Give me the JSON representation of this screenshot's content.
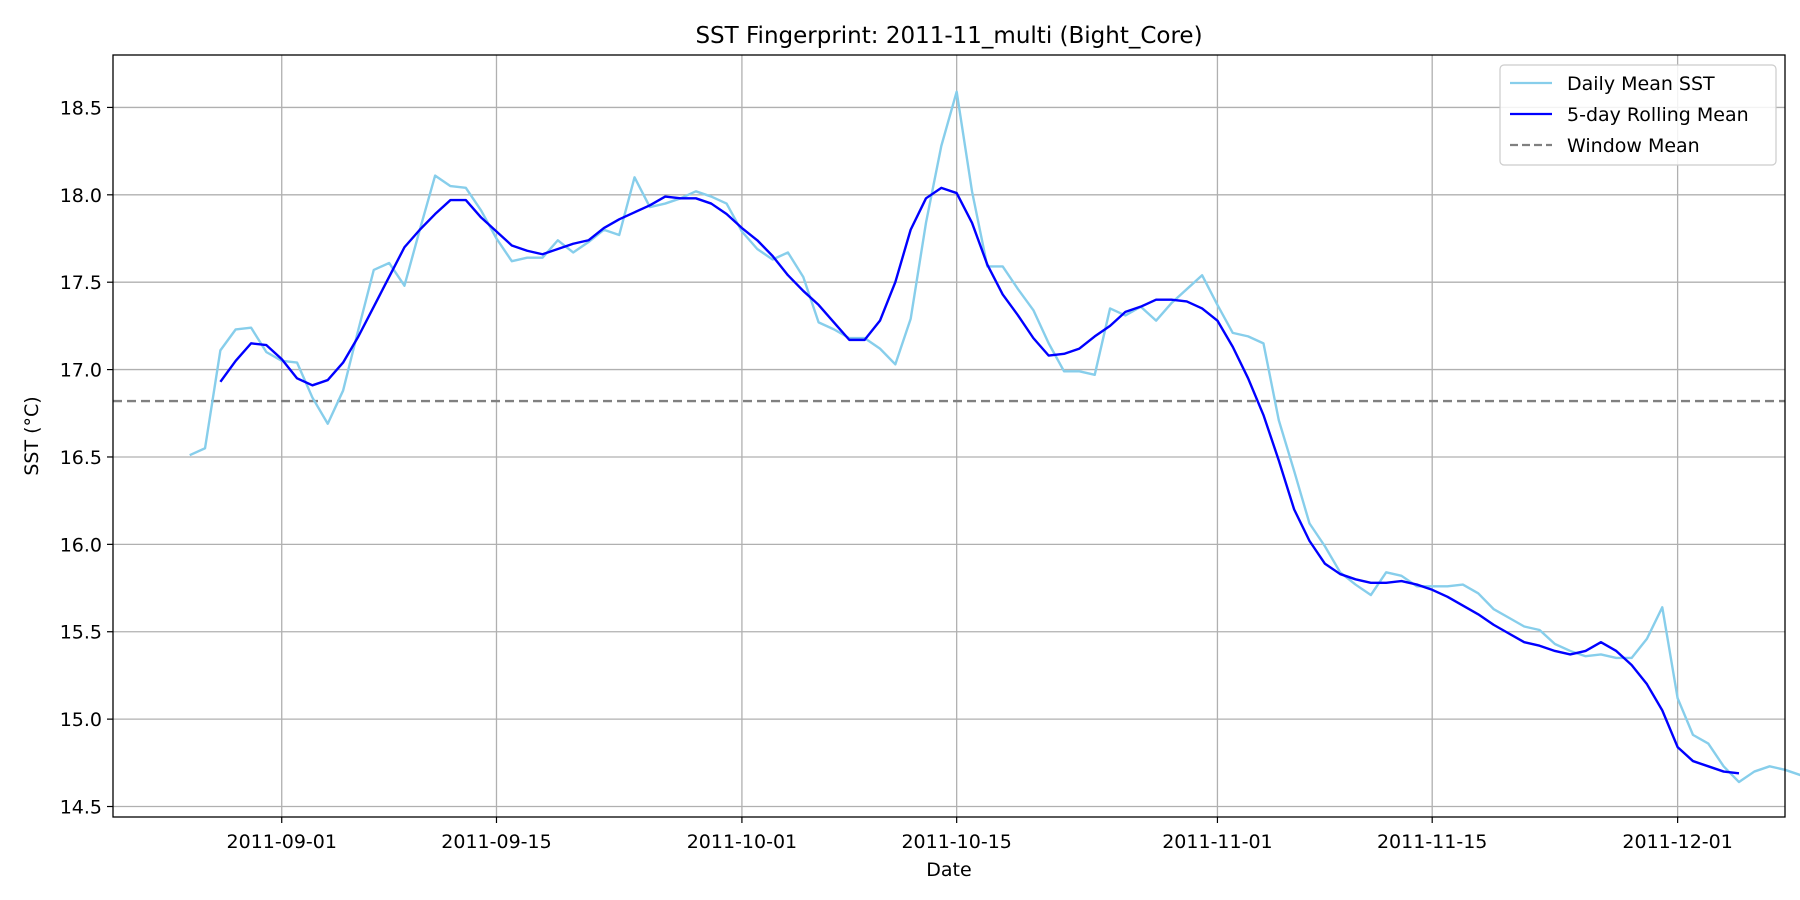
{
  "chart_data": {
    "type": "line",
    "title": "SST Fingerprint: 2011-11_multi (Bight_Core)",
    "xlabel": "Date",
    "ylabel": "SST (°C)",
    "xlim": [
      "2011-08-21",
      "2011-12-08"
    ],
    "ylim": [
      14.44,
      18.8
    ],
    "x_ticks": [
      "2011-09-01",
      "2011-09-15",
      "2011-10-01",
      "2011-10-15",
      "2011-11-01",
      "2011-11-15",
      "2011-12-01"
    ],
    "y_ticks": [
      14.5,
      15.0,
      15.5,
      16.0,
      16.5,
      17.0,
      17.5,
      18.0,
      18.5
    ],
    "grid": true,
    "legend_position": "top-right",
    "colors": {
      "daily": "#87ceeb",
      "rolling": "#0000ff",
      "window_mean": "#808080",
      "grid": "#b0b0b0"
    },
    "window_mean": 16.82,
    "series": [
      {
        "name": "Daily Mean SST",
        "style": "solid",
        "start_date": "2011-08-26",
        "values": [
          16.51,
          16.55,
          17.11,
          17.23,
          17.24,
          17.1,
          17.05,
          17.04,
          16.84,
          16.69,
          16.88,
          17.23,
          17.57,
          17.61,
          17.48,
          17.8,
          18.11,
          18.05,
          18.04,
          17.91,
          17.75,
          17.62,
          17.64,
          17.64,
          17.74,
          17.67,
          17.73,
          17.8,
          17.77,
          18.1,
          17.93,
          17.95,
          17.98,
          18.02,
          17.99,
          17.95,
          17.79,
          17.69,
          17.63,
          17.67,
          17.53,
          17.27,
          17.23,
          17.18,
          17.18,
          17.12,
          17.03,
          17.29,
          17.84,
          18.28,
          18.59,
          18.02,
          17.59,
          17.59,
          17.46,
          17.34,
          17.15,
          16.99,
          16.99,
          16.97,
          17.35,
          17.31,
          17.36,
          17.28,
          17.38,
          17.46,
          17.54,
          17.37,
          17.21,
          17.19,
          17.15,
          16.71,
          16.42,
          16.12,
          15.99,
          15.84,
          15.77,
          15.71,
          15.84,
          15.82,
          15.76,
          15.76,
          15.76,
          15.77,
          15.72,
          15.63,
          15.58,
          15.53,
          15.51,
          15.43,
          15.39,
          15.36,
          15.37,
          15.35,
          15.35,
          15.46,
          15.64,
          15.12,
          14.91,
          14.86,
          14.73,
          14.64,
          14.7,
          14.73,
          14.71,
          14.68
        ]
      },
      {
        "name": "5-day Rolling Mean",
        "style": "solid",
        "start_date": "2011-08-28",
        "values": [
          16.93,
          17.05,
          17.15,
          17.14,
          17.06,
          16.95,
          16.91,
          16.94,
          17.04,
          17.19,
          17.36,
          17.53,
          17.7,
          17.8,
          17.89,
          17.97,
          17.97,
          17.87,
          17.79,
          17.71,
          17.68,
          17.66,
          17.69,
          17.72,
          17.74,
          17.81,
          17.86,
          17.9,
          17.94,
          17.99,
          17.98,
          17.98,
          17.95,
          17.89,
          17.81,
          17.74,
          17.65,
          17.54,
          17.45,
          17.37,
          17.27,
          17.17,
          17.17,
          17.28,
          17.5,
          17.8,
          17.98,
          18.04,
          18.01,
          17.84,
          17.6,
          17.43,
          17.31,
          17.18,
          17.08,
          17.09,
          17.12,
          17.19,
          17.25,
          17.33,
          17.36,
          17.4,
          17.4,
          17.39,
          17.35,
          17.28,
          17.13,
          16.95,
          16.74,
          16.48,
          16.2,
          16.02,
          15.89,
          15.83,
          15.8,
          15.78,
          15.78,
          15.79,
          15.77,
          15.74,
          15.7,
          15.65,
          15.6,
          15.54,
          15.49,
          15.44,
          15.42,
          15.39,
          15.37,
          15.39,
          15.44,
          15.39,
          15.31,
          15.2,
          15.05,
          14.84,
          14.76,
          14.73,
          14.7,
          14.69
        ]
      },
      {
        "name": "Window Mean",
        "style": "dashed",
        "value": 16.82
      }
    ]
  }
}
